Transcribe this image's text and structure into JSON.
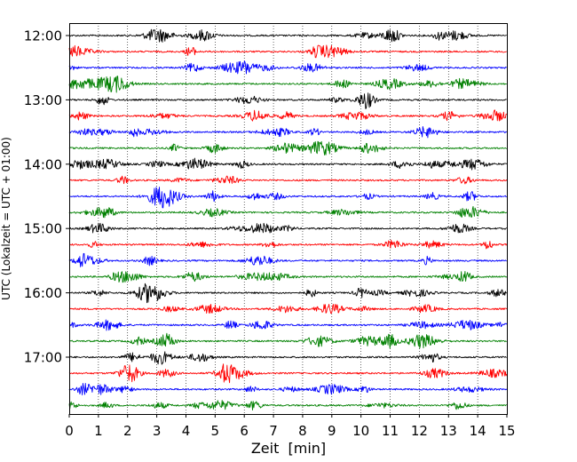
{
  "chart_data": {
    "type": "line",
    "title": "",
    "xlabel": "Zeit  [min]",
    "ylabel": "UTC (Lokalzeit = UTC + 01:00)",
    "xlim": [
      0,
      15
    ],
    "x_ticks": [
      0,
      1,
      2,
      3,
      4,
      5,
      6,
      7,
      8,
      9,
      10,
      11,
      12,
      13,
      14,
      15
    ],
    "x_tick_labels": [
      "0",
      "1",
      "2",
      "3",
      "4",
      "5",
      "6",
      "7",
      "8",
      "9",
      "10",
      "11",
      "12",
      "13",
      "14",
      "15"
    ],
    "grid_x": true,
    "grid_style": "dotted",
    "y_tick_labels": [
      "12:00",
      "13:00",
      "14:00",
      "15:00",
      "16:00",
      "17:00"
    ],
    "trace_interval_min": 15,
    "colors_cycle": [
      "#000000",
      "#ff0000",
      "#0000ff",
      "#008000"
    ],
    "traces": [
      {
        "start": "12:00",
        "color": "#000000"
      },
      {
        "start": "12:15",
        "color": "#ff0000"
      },
      {
        "start": "12:30",
        "color": "#0000ff"
      },
      {
        "start": "12:45",
        "color": "#008000"
      },
      {
        "start": "13:00",
        "color": "#000000"
      },
      {
        "start": "13:15",
        "color": "#ff0000"
      },
      {
        "start": "13:30",
        "color": "#0000ff"
      },
      {
        "start": "13:45",
        "color": "#008000"
      },
      {
        "start": "14:00",
        "color": "#000000"
      },
      {
        "start": "14:15",
        "color": "#ff0000"
      },
      {
        "start": "14:30",
        "color": "#0000ff"
      },
      {
        "start": "14:45",
        "color": "#008000"
      },
      {
        "start": "15:00",
        "color": "#000000"
      },
      {
        "start": "15:15",
        "color": "#ff0000"
      },
      {
        "start": "15:30",
        "color": "#0000ff"
      },
      {
        "start": "15:45",
        "color": "#008000"
      },
      {
        "start": "16:00",
        "color": "#000000"
      },
      {
        "start": "16:15",
        "color": "#ff0000"
      },
      {
        "start": "16:30",
        "color": "#0000ff"
      },
      {
        "start": "16:45",
        "color": "#008000"
      },
      {
        "start": "17:00",
        "color": "#000000"
      },
      {
        "start": "17:15",
        "color": "#ff0000"
      },
      {
        "start": "17:30",
        "color": "#0000ff"
      },
      {
        "start": "17:45",
        "color": "#008000"
      }
    ]
  }
}
